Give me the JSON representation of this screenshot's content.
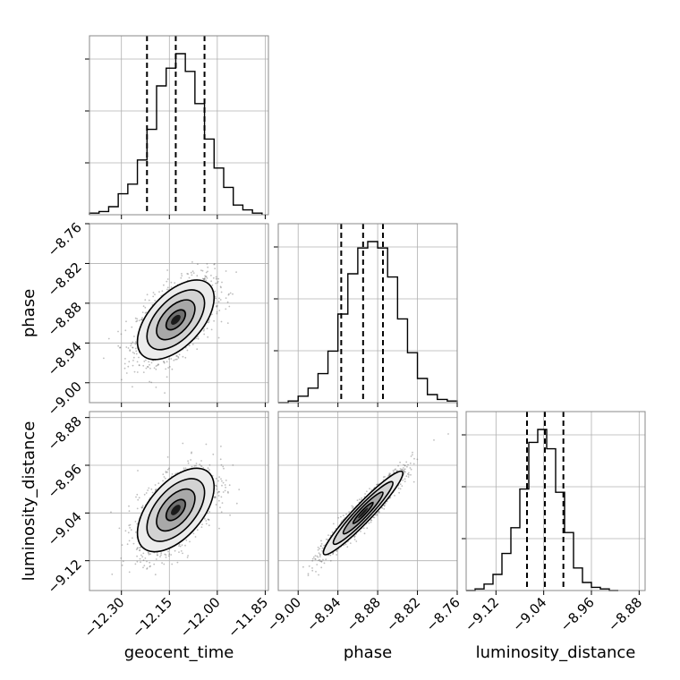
{
  "chart_data": {
    "type": "corner",
    "parameters": [
      "geocent_time",
      "phase",
      "luminosity_distance"
    ],
    "grid": true,
    "ranges": {
      "geocent_time": [
        -12.4,
        -11.84
      ],
      "phase": [
        -9.03,
        -8.76
      ],
      "luminosity_distance": [
        -9.17,
        -8.87
      ]
    },
    "ticks": {
      "geocent_time": [
        "-12.30",
        "-12.15",
        "-12.00",
        "-11.85"
      ],
      "phase": [
        "-8.76",
        "-8.82",
        "-8.88",
        "-8.94",
        "-9.00"
      ],
      "phase_x": [
        "-9.00",
        "-8.94",
        "-8.88",
        "-8.82",
        "-8.76"
      ],
      "luminosity_distance": [
        "-8.88",
        "-8.96",
        "-9.04",
        "-9.12"
      ],
      "luminosity_distance_x": [
        "-9.12",
        "-9.04",
        "-8.96",
        "-8.88"
      ]
    },
    "marginals": [
      {
        "parameter": "geocent_time",
        "quantiles": [
          -12.22,
          -12.13,
          -12.04
        ],
        "edges": [
          -12.4,
          -12.37,
          -12.34,
          -12.31,
          -12.28,
          -12.25,
          -12.22,
          -12.19,
          -12.16,
          -12.13,
          -12.1,
          -12.07,
          -12.04,
          -12.01,
          -11.98,
          -11.95,
          -11.92,
          -11.89,
          -11.86
        ],
        "heights": [
          0.01,
          0.02,
          0.05,
          0.13,
          0.19,
          0.34,
          0.53,
          0.8,
          0.91,
          1.0,
          0.89,
          0.69,
          0.47,
          0.29,
          0.17,
          0.06,
          0.03,
          0.01
        ]
      },
      {
        "parameter": "phase",
        "quantiles": [
          -8.935,
          -8.902,
          -8.872
        ],
        "edges": [
          -9.03,
          -9.015,
          -9.0,
          -8.985,
          -8.97,
          -8.955,
          -8.94,
          -8.925,
          -8.91,
          -8.895,
          -8.88,
          -8.865,
          -8.85,
          -8.835,
          -8.82,
          -8.805,
          -8.79,
          -8.775,
          -8.76
        ],
        "heights": [
          0.0,
          0.01,
          0.04,
          0.09,
          0.18,
          0.32,
          0.55,
          0.8,
          0.96,
          1.0,
          0.96,
          0.78,
          0.52,
          0.31,
          0.15,
          0.05,
          0.02,
          0.01
        ]
      },
      {
        "parameter": "luminosity_distance",
        "quantiles": [
          -9.068,
          -9.038,
          -9.007
        ],
        "edges": [
          -9.17,
          -9.155,
          -9.14,
          -9.125,
          -9.11,
          -9.095,
          -9.08,
          -9.065,
          -9.05,
          -9.035,
          -9.02,
          -9.005,
          -8.99,
          -8.975,
          -8.96,
          -8.945,
          -8.93,
          -8.915
        ],
        "heights": [
          0.0,
          0.01,
          0.04,
          0.1,
          0.23,
          0.39,
          0.63,
          0.92,
          1.0,
          0.88,
          0.61,
          0.36,
          0.14,
          0.05,
          0.02,
          0.01,
          0.0
        ]
      }
    ],
    "pairs": [
      {
        "x": "geocent_time",
        "y": "phase",
        "center": [
          -12.13,
          -8.905
        ],
        "sigma": [
          0.06,
          0.03
        ],
        "rho": 0.55,
        "contour_levels": [
          0.5,
          1.0,
          1.5,
          2.0
        ]
      },
      {
        "x": "geocent_time",
        "y": "luminosity_distance",
        "center": [
          -12.13,
          -9.035
        ],
        "sigma": [
          0.06,
          0.035
        ],
        "rho": 0.55,
        "contour_levels": [
          0.5,
          1.0,
          1.5,
          2.0
        ]
      },
      {
        "x": "phase",
        "y": "luminosity_distance",
        "center": [
          -8.902,
          -9.04
        ],
        "sigma": [
          0.03,
          0.035
        ],
        "rho": 0.95,
        "contour_levels": [
          0.5,
          1.0,
          1.5,
          2.0
        ]
      }
    ],
    "xlabels": [
      "geocent_time",
      "phase",
      "luminosity_distance"
    ],
    "ylabels": [
      "",
      "phase",
      "luminosity_distance"
    ]
  }
}
